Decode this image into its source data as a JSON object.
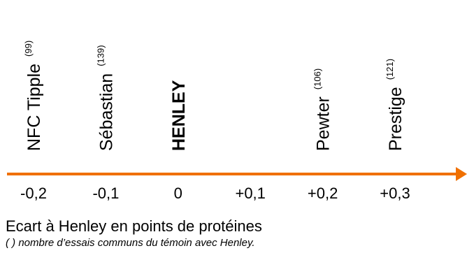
{
  "chart_data": {
    "type": "scatter",
    "xlabel": "Ecart à Henley en points de protéines",
    "note": "( ) nombre d’essais communs du témoin avec Henley.",
    "x_ticks": [
      "-0,2",
      "-0,1",
      "0",
      "+0,1",
      "+0,2",
      "+0,3"
    ],
    "xlim": [
      -0.2,
      0.3
    ],
    "colors": {
      "reference": "#f07000",
      "axis": "#f07000",
      "text": "#000000"
    },
    "points": [
      {
        "name": "NFC Tipple",
        "x": -0.2,
        "trials": "(99)",
        "reference": false
      },
      {
        "name": "Sébastian",
        "x": -0.1,
        "trials": "(139)",
        "reference": false
      },
      {
        "name": "HENLEY",
        "x": 0,
        "trials": "",
        "reference": true
      },
      {
        "name": "Pewter",
        "x": 0.2,
        "trials": "(106)",
        "reference": false
      },
      {
        "name": "Prestige",
        "x": 0.3,
        "trials": "(121)",
        "reference": false
      }
    ]
  }
}
